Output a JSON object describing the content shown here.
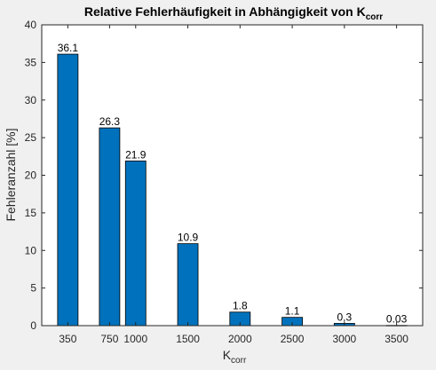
{
  "chart_data": {
    "type": "bar",
    "title": "Relative Fehlerhäufigkeit in Abhängigkeit von K",
    "title_subscript": "corr",
    "xlabel": "K",
    "xlabel_subscript": "corr",
    "ylabel": "Fehleranzahl [%]",
    "x": [
      350,
      750,
      1000,
      1500,
      2000,
      2500,
      3000,
      3500
    ],
    "values": [
      36.1,
      26.3,
      21.9,
      10.9,
      1.8,
      1.1,
      0.3,
      0.03
    ],
    "value_labels": [
      "36.1",
      "26.3",
      "21.9",
      "10.9",
      "1.8",
      "1.1",
      "0,3",
      "0.03"
    ],
    "xticks": [
      "350",
      "750",
      "1000",
      "1500",
      "2000",
      "2500",
      "3000",
      "3500"
    ],
    "yticks": [
      "0",
      "5",
      "10",
      "15",
      "20",
      "25",
      "30",
      "35",
      "40"
    ],
    "ylim": [
      0,
      40
    ],
    "xlim": [
      100,
      3750
    ],
    "grid": false,
    "colors": {
      "bar": "#0072bd",
      "axes_bg": "#ffffff",
      "figure_bg": "#f0f0f0",
      "text": "#262626"
    }
  }
}
